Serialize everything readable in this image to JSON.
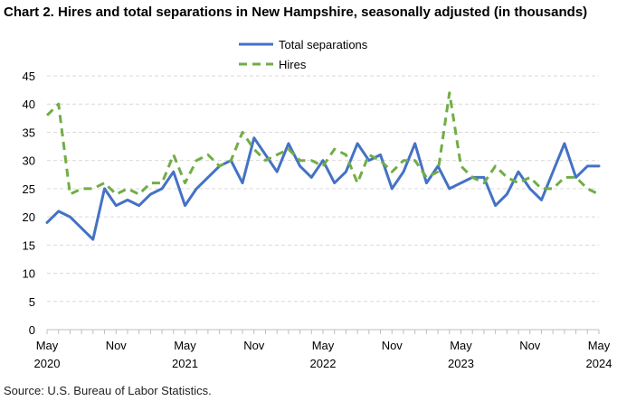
{
  "chart_data": {
    "type": "line",
    "title": "Chart 2. Hires and total separations in New Hampshire, seasonally adjusted (in thousands)",
    "source": "Source: U.S. Bureau of Labor Statistics.",
    "ylim": [
      0,
      45
    ],
    "yticks": [
      0,
      5,
      10,
      15,
      20,
      25,
      30,
      35,
      40,
      45
    ],
    "grid": true,
    "legend_position": "top-center",
    "x_start": "2020-05",
    "x_end": "2024-05",
    "xtick_labels": [
      {
        "month": "2020-05",
        "line1": "May",
        "line2": "2020"
      },
      {
        "month": "2020-11",
        "line1": "Nov",
        "line2": ""
      },
      {
        "month": "2021-05",
        "line1": "May",
        "line2": "2021"
      },
      {
        "month": "2021-11",
        "line1": "Nov",
        "line2": ""
      },
      {
        "month": "2022-05",
        "line1": "May",
        "line2": "2022"
      },
      {
        "month": "2022-11",
        "line1": "Nov",
        "line2": ""
      },
      {
        "month": "2023-05",
        "line1": "May",
        "line2": "2023"
      },
      {
        "month": "2023-11",
        "line1": "Nov",
        "line2": ""
      },
      {
        "month": "2024-05",
        "line1": "May",
        "line2": "2024"
      }
    ],
    "series": [
      {
        "name": "Total separations",
        "color": "#4472C4",
        "style": "solid",
        "values": [
          19,
          21,
          20,
          18,
          16,
          25,
          22,
          23,
          22,
          24,
          25,
          28,
          22,
          25,
          27,
          29,
          30,
          26,
          34,
          31,
          28,
          33,
          29,
          27,
          30,
          26,
          28,
          33,
          30,
          31,
          25,
          28,
          33,
          26,
          29,
          25,
          26,
          27,
          27,
          22,
          24,
          28,
          25,
          23,
          28,
          33,
          27,
          29,
          29
        ]
      },
      {
        "name": "Hires",
        "color": "#70AD47",
        "style": "dashed",
        "values": [
          38,
          40,
          24,
          25,
          25,
          26,
          24,
          25,
          24,
          26,
          26,
          31,
          26,
          30,
          31,
          29,
          30,
          35,
          32,
          30,
          31,
          32,
          30,
          30,
          29,
          32,
          31,
          26,
          31,
          30,
          28,
          30,
          30,
          27,
          28,
          42,
          29,
          27,
          26,
          29,
          27,
          26,
          27,
          25,
          25,
          27,
          27,
          25,
          24
        ]
      }
    ]
  }
}
